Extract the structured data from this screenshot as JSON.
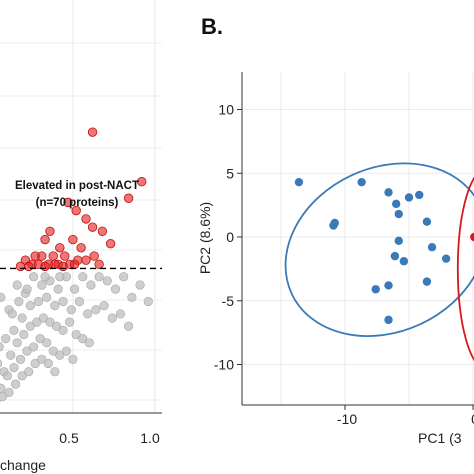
{
  "panel_label_b": "B.",
  "chart_data": [
    {
      "type": "scatter",
      "title": "",
      "annotation": [
        "Elevated in post-NACT",
        "(n=70 proteins)"
      ],
      "xlabel": "change",
      "ylabel": "",
      "x_ticks": [
        "0.5",
        "1.0"
      ],
      "xlim": [
        0.0,
        1.05
      ],
      "ylim": [
        0.0,
        1.0
      ],
      "threshold_y": 0.35,
      "grid": true,
      "colors": {
        "elevated": "#e41a1c",
        "background": "#bdbdbd",
        "threshold": "#000000"
      },
      "series": [
        {
          "group": "elevated",
          "points": [
            [
              0.62,
              0.68
            ],
            [
              0.92,
              0.56
            ],
            [
              0.84,
              0.52
            ],
            [
              0.47,
              0.51
            ],
            [
              0.52,
              0.49
            ],
            [
              0.58,
              0.47
            ],
            [
              0.62,
              0.45
            ],
            [
              0.68,
              0.44
            ],
            [
              0.36,
              0.44
            ],
            [
              0.33,
              0.42
            ],
            [
              0.5,
              0.42
            ],
            [
              0.73,
              0.41
            ],
            [
              0.42,
              0.4
            ],
            [
              0.55,
              0.4
            ],
            [
              0.27,
              0.38
            ],
            [
              0.31,
              0.38
            ],
            [
              0.38,
              0.38
            ],
            [
              0.45,
              0.38
            ],
            [
              0.63,
              0.38
            ],
            [
              0.53,
              0.37
            ],
            [
              0.58,
              0.37
            ],
            [
              0.21,
              0.37
            ],
            [
              0.25,
              0.36
            ],
            [
              0.29,
              0.36
            ],
            [
              0.35,
              0.36
            ],
            [
              0.41,
              0.36
            ],
            [
              0.48,
              0.36
            ],
            [
              0.51,
              0.36
            ],
            [
              0.66,
              0.36
            ],
            [
              0.18,
              0.355
            ],
            [
              0.23,
              0.355
            ],
            [
              0.33,
              0.355
            ],
            [
              0.44,
              0.355
            ],
            [
              0.39,
              0.36
            ]
          ]
        },
        {
          "group": "background",
          "points": [
            [
              0.06,
              0.28
            ],
            [
              0.11,
              0.25
            ],
            [
              0.16,
              0.31
            ],
            [
              0.21,
              0.29
            ],
            [
              0.26,
              0.33
            ],
            [
              0.31,
              0.31
            ],
            [
              0.36,
              0.32
            ],
            [
              0.41,
              0.3
            ],
            [
              0.46,
              0.33
            ],
            [
              0.51,
              0.3
            ],
            [
              0.56,
              0.33
            ],
            [
              0.61,
              0.31
            ],
            [
              0.66,
              0.33
            ],
            [
              0.71,
              0.32
            ],
            [
              0.76,
              0.3
            ],
            [
              0.81,
              0.33
            ],
            [
              0.86,
              0.28
            ],
            [
              0.91,
              0.31
            ],
            [
              0.96,
              0.27
            ],
            [
              0.09,
              0.18
            ],
            [
              0.14,
              0.2
            ],
            [
              0.19,
              0.23
            ],
            [
              0.24,
              0.26
            ],
            [
              0.29,
              0.27
            ],
            [
              0.34,
              0.28
            ],
            [
              0.39,
              0.26
            ],
            [
              0.44,
              0.27
            ],
            [
              0.49,
              0.25
            ],
            [
              0.54,
              0.27
            ],
            [
              0.59,
              0.24
            ],
            [
              0.64,
              0.25
            ],
            [
              0.69,
              0.26
            ],
            [
              0.74,
              0.23
            ],
            [
              0.79,
              0.24
            ],
            [
              0.84,
              0.21
            ],
            [
              0.04,
              0.12
            ],
            [
              0.08,
              0.1
            ],
            [
              0.12,
              0.14
            ],
            [
              0.16,
              0.17
            ],
            [
              0.2,
              0.19
            ],
            [
              0.24,
              0.21
            ],
            [
              0.28,
              0.22
            ],
            [
              0.32,
              0.23
            ],
            [
              0.36,
              0.22
            ],
            [
              0.4,
              0.21
            ],
            [
              0.44,
              0.2
            ],
            [
              0.48,
              0.22
            ],
            [
              0.52,
              0.19
            ],
            [
              0.56,
              0.18
            ],
            [
              0.6,
              0.17
            ],
            [
              0.02,
              0.08
            ],
            [
              0.06,
              0.06
            ],
            [
              0.1,
              0.09
            ],
            [
              0.14,
              0.11
            ],
            [
              0.18,
              0.13
            ],
            [
              0.22,
              0.15
            ],
            [
              0.26,
              0.16
            ],
            [
              0.3,
              0.18
            ],
            [
              0.34,
              0.17
            ],
            [
              0.38,
              0.15
            ],
            [
              0.42,
              0.14
            ],
            [
              0.46,
              0.15
            ],
            [
              0.5,
              0.13
            ],
            [
              0.03,
              0.03
            ],
            [
              0.07,
              0.04
            ],
            [
              0.11,
              0.05
            ],
            [
              0.15,
              0.07
            ],
            [
              0.19,
              0.09
            ],
            [
              0.23,
              0.1
            ],
            [
              0.27,
              0.12
            ],
            [
              0.31,
              0.13
            ],
            [
              0.35,
              0.12
            ],
            [
              0.39,
              0.1
            ],
            [
              0.05,
              0.16
            ],
            [
              0.13,
              0.24
            ],
            [
              0.17,
              0.27
            ],
            [
              0.22,
              0.3
            ],
            [
              0.33,
              0.33
            ],
            [
              0.42,
              0.33
            ]
          ]
        }
      ]
    },
    {
      "type": "scatter",
      "xlabel": "PC1 (3",
      "ylabel": "PC2 (8.6%)",
      "x_ticks": [
        "-10",
        "0"
      ],
      "y_ticks": [
        "10",
        "5",
        "0",
        "-5",
        "-10"
      ],
      "xlim": [
        -17,
        0.6
      ],
      "ylim": [
        -12.8,
        13
      ],
      "grid": true,
      "colors": {
        "group1": "#3a7ab8",
        "group2": "#d7191c"
      },
      "series": [
        {
          "group": "group1",
          "points": [
            [
              -13.6,
              4.3
            ],
            [
              -10.8,
              1.1
            ],
            [
              -10.9,
              0.9
            ],
            [
              -8.7,
              4.3
            ],
            [
              -6.6,
              3.5
            ],
            [
              -6.0,
              2.6
            ],
            [
              -5.0,
              3.1
            ],
            [
              -5.8,
              1.8
            ],
            [
              -4.2,
              3.3
            ],
            [
              -3.6,
              1.2
            ],
            [
              -5.8,
              -0.3
            ],
            [
              -6.1,
              -1.5
            ],
            [
              -5.4,
              -1.9
            ],
            [
              -3.2,
              -0.8
            ],
            [
              -2.1,
              -1.7
            ],
            [
              -3.6,
              -3.5
            ],
            [
              -7.6,
              -4.1
            ],
            [
              -6.6,
              -3.8
            ],
            [
              -6.6,
              -6.5
            ]
          ]
        },
        {
          "group": "group2",
          "points": [
            [
              0.1,
              0.0
            ]
          ]
        }
      ],
      "ellipses": [
        {
          "group": "group1",
          "center": [
            -6.8,
            -1.0
          ],
          "rx": 10.2,
          "ry": 10.2,
          "angle": -25
        },
        {
          "group": "group2",
          "center": [
            1.0,
            -2.5
          ],
          "rx": 2.2,
          "ry": 8.0,
          "angle": 0
        }
      ]
    }
  ]
}
